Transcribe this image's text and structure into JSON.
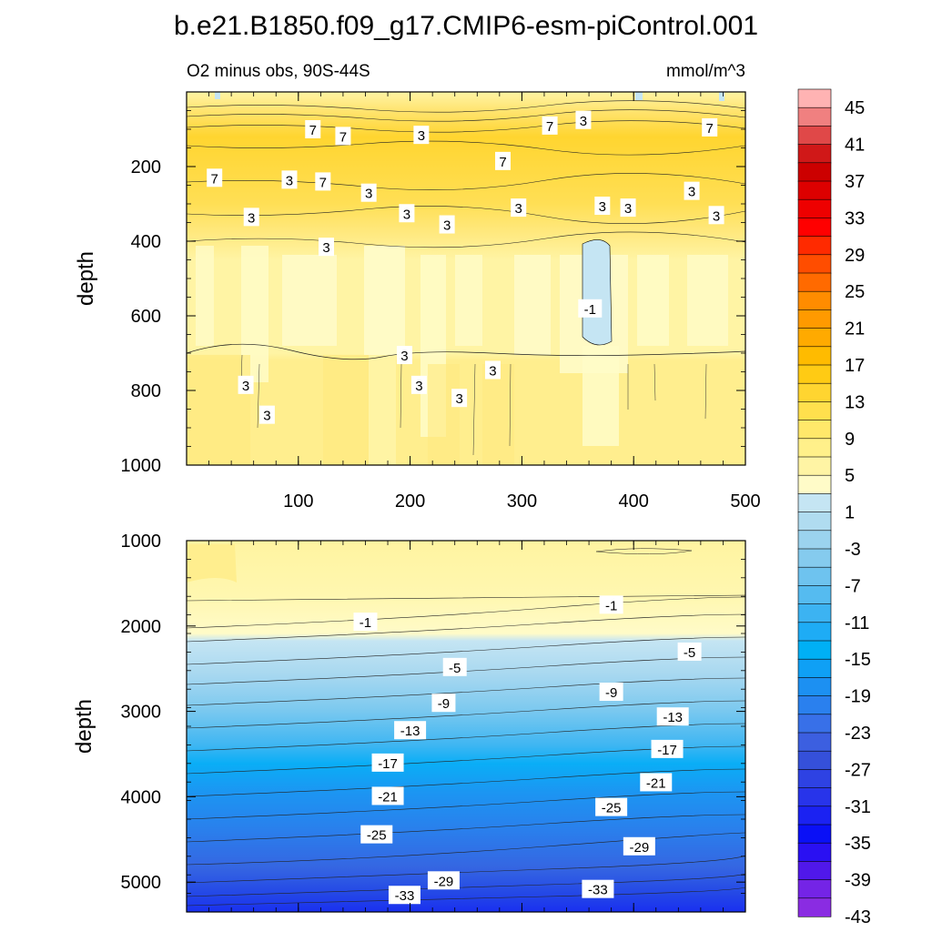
{
  "figure": {
    "title": "b.e21.B1850.f09_g17.CMIP6-esm-piControl.001",
    "subtitle_left": "O2 minus obs, 90S-44S",
    "subtitle_right": "mmol/m^3"
  },
  "colorbar": {
    "labels": [
      "45",
      "41",
      "37",
      "33",
      "29",
      "25",
      "21",
      "17",
      "13",
      "9",
      "5",
      "1",
      "-3",
      "-7",
      "-11",
      "-15",
      "-19",
      "-23",
      "-27",
      "-31",
      "-35",
      "-39",
      "-43"
    ],
    "colors": [
      "#ffb3b3",
      "#f08080",
      "#e04848",
      "#d01818",
      "#cc0000",
      "#dd0000",
      "#ee0000",
      "#ff0000",
      "#ff2a00",
      "#ff4d00",
      "#ff6a00",
      "#ff8c00",
      "#ff9a00",
      "#ffaa00",
      "#ffbb00",
      "#ffcb14",
      "#ffd530",
      "#ffe04d",
      "#ffe86a",
      "#fff08a",
      "#fff4a4",
      "#fffbc8",
      "#c5e5f3",
      "#b0dcf0",
      "#9bd3ee",
      "#85cbee",
      "#6ec3ef",
      "#55bbf0",
      "#3cb3f2",
      "#1eacf5",
      "#00b0f5",
      "#0fa0f5",
      "#1c90f2",
      "#2a80ee",
      "#3870e8",
      "#3c5fe0",
      "#3550da",
      "#2e42e3",
      "#2834ea",
      "#1b22f2",
      "#0a10f6",
      "#2a10f2",
      "#5018ea",
      "#7424e6",
      "#8a2ce2"
    ]
  },
  "chart_data": [
    {
      "type": "heatmap",
      "xlabel": "",
      "ylabel": "depth",
      "xlim": [
        0,
        500
      ],
      "ylim": [
        1000,
        0
      ],
      "x_ticks": [
        "100",
        "200",
        "300",
        "400",
        "500"
      ],
      "y_ticks": [
        "200",
        "400",
        "600",
        "800",
        "1000"
      ],
      "contour_labels": [
        {
          "text": "3",
          "x": 210,
          "y": 115
        },
        {
          "text": "7",
          "x": 113,
          "y": 100
        },
        {
          "text": "7",
          "x": 140,
          "y": 118
        },
        {
          "text": "7",
          "x": 325,
          "y": 90
        },
        {
          "text": "3",
          "x": 355,
          "y": 75
        },
        {
          "text": "7",
          "x": 468,
          "y": 95
        },
        {
          "text": "7",
          "x": 283,
          "y": 185
        },
        {
          "text": "7",
          "x": 25,
          "y": 230
        },
        {
          "text": "3",
          "x": 92,
          "y": 235
        },
        {
          "text": "7",
          "x": 122,
          "y": 240
        },
        {
          "text": "3",
          "x": 163,
          "y": 270
        },
        {
          "text": "3",
          "x": 372,
          "y": 305
        },
        {
          "text": "3",
          "x": 452,
          "y": 265
        },
        {
          "text": "3",
          "x": 58,
          "y": 335
        },
        {
          "text": "3",
          "x": 197,
          "y": 325
        },
        {
          "text": "3",
          "x": 297,
          "y": 310
        },
        {
          "text": "3",
          "x": 233,
          "y": 355
        },
        {
          "text": "3",
          "x": 395,
          "y": 310
        },
        {
          "text": "3",
          "x": 474,
          "y": 330
        },
        {
          "text": "3",
          "x": 125,
          "y": 415
        },
        {
          "text": "-1",
          "x": 361,
          "y": 580
        },
        {
          "text": "3",
          "x": 195,
          "y": 705
        },
        {
          "text": "3",
          "x": 53,
          "y": 785
        },
        {
          "text": "3",
          "x": 208,
          "y": 785
        },
        {
          "text": "3",
          "x": 274,
          "y": 745
        },
        {
          "text": "3",
          "x": 244,
          "y": 820
        },
        {
          "text": "3",
          "x": 72,
          "y": 865
        }
      ]
    },
    {
      "type": "heatmap",
      "xlabel": "",
      "ylabel": "depth",
      "xlim": [
        0,
        500
      ],
      "ylim": [
        5350,
        1000
      ],
      "y_ticks": [
        "1000",
        "2000",
        "3000",
        "4000",
        "5000"
      ],
      "contour_labels": [
        {
          "text": "-1",
          "x": 160,
          "y": 1950
        },
        {
          "text": "-1",
          "x": 380,
          "y": 1750
        },
        {
          "text": "-5",
          "x": 240,
          "y": 2480
        },
        {
          "text": "-5",
          "x": 450,
          "y": 2300
        },
        {
          "text": "-9",
          "x": 230,
          "y": 2900
        },
        {
          "text": "-9",
          "x": 380,
          "y": 2770
        },
        {
          "text": "-13",
          "x": 200,
          "y": 3220
        },
        {
          "text": "-13",
          "x": 435,
          "y": 3060
        },
        {
          "text": "-17",
          "x": 180,
          "y": 3600
        },
        {
          "text": "-17",
          "x": 430,
          "y": 3440
        },
        {
          "text": "-21",
          "x": 180,
          "y": 3990
        },
        {
          "text": "-21",
          "x": 420,
          "y": 3830
        },
        {
          "text": "-25",
          "x": 170,
          "y": 4440
        },
        {
          "text": "-25",
          "x": 380,
          "y": 4120
        },
        {
          "text": "-29",
          "x": 230,
          "y": 4980
        },
        {
          "text": "-29",
          "x": 405,
          "y": 4580
        },
        {
          "text": "-33",
          "x": 195,
          "y": 5150
        },
        {
          "text": "-33",
          "x": 368,
          "y": 5080
        }
      ]
    }
  ]
}
